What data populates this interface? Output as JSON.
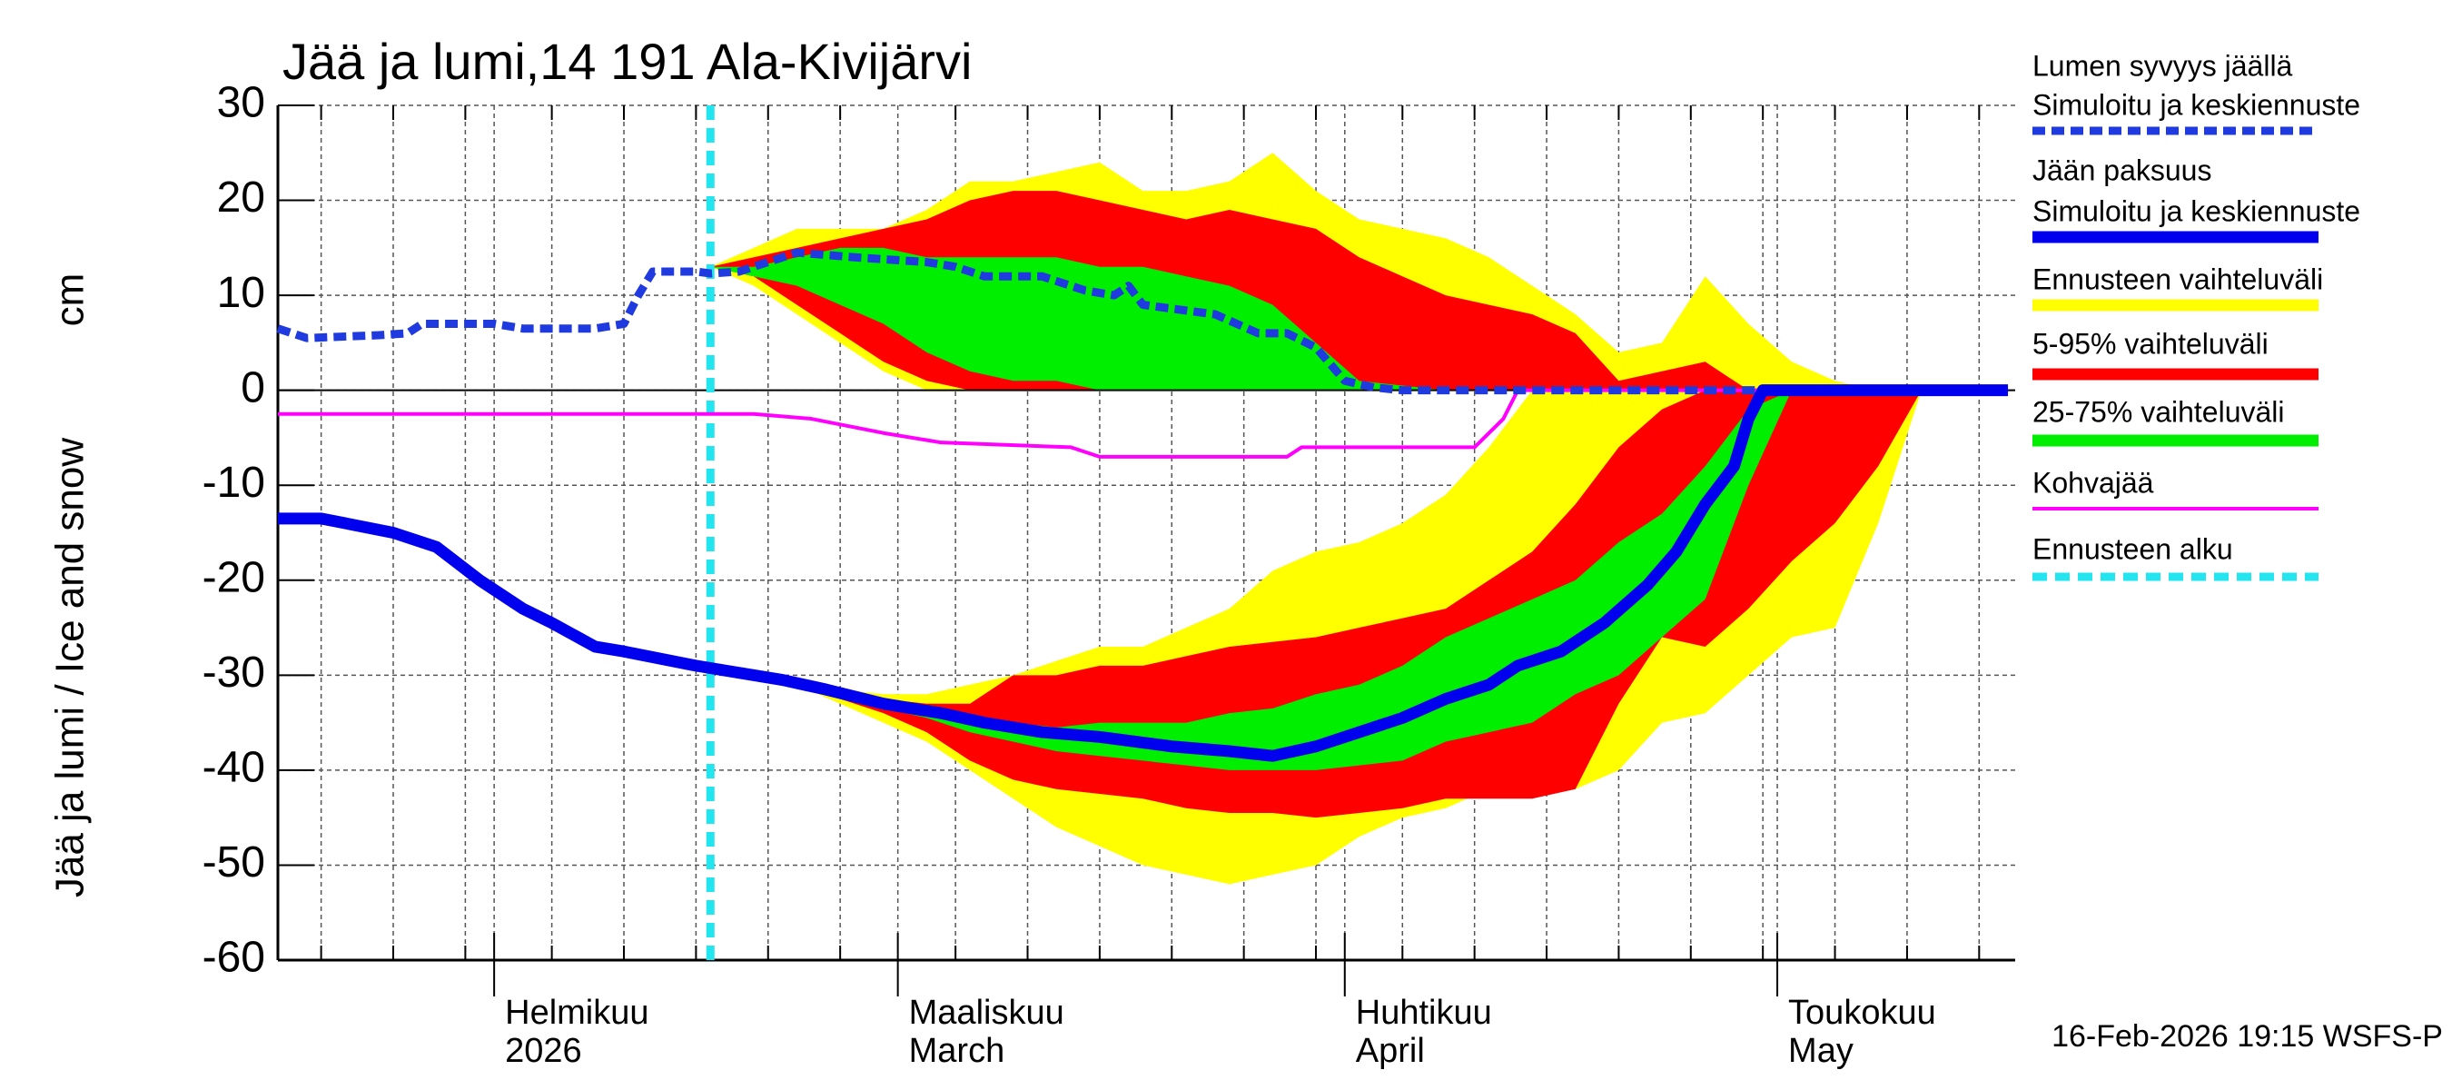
{
  "chart_data": {
    "type": "line",
    "title": "Jää ja lumi,14 191 Ala-Kivijärvi",
    "ylabel": "Jää ja lumi / Ice and snow",
    "yunit": "cm",
    "footer": "16-Feb-2026 19:15 WSFS-P",
    "xlim": [
      17,
      137.5
    ],
    "ylim": [
      -60,
      30
    ],
    "yticks": [
      30,
      20,
      10,
      0,
      -10,
      -20,
      -30,
      -40,
      -50,
      -60
    ],
    "xticks": [
      {
        "value": 32,
        "label": "Helmikuu"
      },
      {
        "value": 60,
        "label": "Maaliskuu"
      },
      {
        "value": 91,
        "label": "Huhtikuu"
      },
      {
        "value": 121,
        "label": "Toukokuu"
      }
    ],
    "xticks_sub": [
      "2026",
      "March",
      "April",
      "May"
    ],
    "xminor": [
      20,
      25,
      30,
      36,
      41,
      46,
      51,
      56,
      64,
      69,
      74,
      79,
      84,
      89,
      95,
      100,
      105,
      110,
      115,
      120,
      125,
      130,
      135
    ],
    "grid": true,
    "series": [
      {
        "name": "Lumen syvyys jäällä",
        "name2": "Simuloitu ja keskiennuste",
        "color": "#1f3be0",
        "dashed": true,
        "width": 9,
        "x": [
          17,
          19,
          24,
          26,
          27,
          32,
          34,
          39,
          41,
          42,
          43,
          46,
          47,
          49,
          51,
          53,
          57,
          62,
          64,
          66,
          70,
          72,
          73,
          75,
          76,
          77,
          82,
          85,
          87,
          89,
          91,
          93,
          95,
          137
        ],
        "values": [
          6.5,
          5.5,
          5.8,
          6,
          7,
          7,
          6.5,
          6.5,
          7,
          10,
          12.5,
          12.5,
          12.3,
          12.5,
          13.5,
          14.5,
          14,
          13.5,
          13,
          12,
          12,
          11,
          10.5,
          10,
          11,
          9,
          8,
          6,
          6,
          4.5,
          1,
          0.3,
          0,
          0
        ]
      },
      {
        "name": "Jään paksuus",
        "name2": "Simuloitu ja keskiennuste",
        "color": "#0000ee",
        "dashed": false,
        "width": 13,
        "x": [
          17,
          20,
          25,
          28,
          31,
          34,
          36,
          39,
          41,
          46,
          48,
          52,
          55,
          59,
          63,
          66,
          70,
          74,
          79,
          83,
          86,
          89,
          91,
          95,
          98,
          101,
          103,
          106,
          109,
          112,
          114,
          116,
          118,
          119,
          120,
          137
        ],
        "values": [
          -13.5,
          -13.5,
          -15,
          -16.5,
          -20,
          -23,
          -24.5,
          -27,
          -27.5,
          -29,
          -29.5,
          -30.5,
          -31.5,
          -33,
          -34,
          -35,
          -36,
          -36.5,
          -37.5,
          -38,
          -38.5,
          -37.5,
          -36.5,
          -34.5,
          -32.5,
          -31,
          -29,
          -27.5,
          -24.5,
          -20.5,
          -17,
          -12,
          -8,
          -3,
          0,
          0
        ]
      },
      {
        "name": "Kohvajää",
        "color": "#ff00ff",
        "dashed": false,
        "width": 4,
        "x": [
          17,
          50,
          54,
          59,
          63,
          72,
          74,
          87,
          88,
          100,
          102,
          103,
          137
        ],
        "values": [
          -2.5,
          -2.5,
          -3,
          -4.5,
          -5.5,
          -6,
          -7,
          -7,
          -6,
          -6,
          -3,
          0,
          0
        ]
      }
    ],
    "band_x": [
      47,
      50,
      53,
      56,
      59,
      62,
      65,
      68,
      71,
      74,
      77,
      80,
      83,
      86,
      89,
      92,
      95,
      98,
      101,
      104,
      107,
      110,
      113,
      116,
      119,
      122,
      125,
      128,
      131,
      134
    ],
    "bands": [
      {
        "name": "Ennusteen vaihteluväli",
        "color": "#ffff00",
        "snow": {
          "high": [
            13,
            15,
            17,
            17,
            17,
            19,
            22,
            22,
            23,
            24,
            21,
            21,
            22,
            25,
            21,
            18,
            17,
            16,
            14,
            11,
            8,
            4,
            5,
            12,
            7,
            3,
            1,
            0,
            0,
            0
          ],
          "low": [
            13,
            11,
            8,
            5,
            2,
            0,
            0,
            0,
            0,
            0,
            0,
            0,
            0,
            0,
            0,
            0,
            0,
            0,
            0,
            0,
            0,
            0,
            0,
            0,
            0,
            0,
            0,
            0,
            0,
            0
          ]
        },
        "ice": {
          "high": [
            -29,
            -30,
            -30.5,
            -31.5,
            -32,
            -32,
            -31,
            -30,
            -28.5,
            -27,
            -27,
            -25,
            -23,
            -19,
            -17,
            -16,
            -14,
            -11,
            -6,
            0,
            0,
            0,
            0,
            0,
            0,
            0,
            0,
            0,
            0,
            0
          ],
          "low": [
            -29,
            -30,
            -31,
            -33,
            -35,
            -37,
            -40,
            -43,
            -46,
            -48,
            -50,
            -51,
            -52,
            -51,
            -50,
            -47,
            -45,
            -44,
            -42,
            -42,
            -42,
            -40,
            -35,
            -34,
            -30,
            -26,
            -25,
            -14,
            0,
            0
          ]
        }
      },
      {
        "name": "5-95% vaihteluväli",
        "color": "#ff0000",
        "snow": {
          "high": [
            13,
            14,
            15,
            16,
            17,
            18,
            20,
            21,
            21,
            20,
            19,
            18,
            19,
            18,
            17,
            14,
            12,
            10,
            9,
            8,
            6,
            1,
            2,
            3,
            0,
            0,
            0,
            0,
            0,
            0
          ],
          "low": [
            13,
            12,
            9,
            6,
            3,
            1,
            0,
            0,
            0,
            0,
            0,
            0,
            0,
            0,
            0,
            0,
            0,
            0,
            0,
            0,
            0,
            0,
            0,
            0,
            0,
            0,
            0,
            0,
            0,
            0
          ]
        },
        "ice": {
          "high": [
            -29,
            -30,
            -30.5,
            -31.5,
            -32.5,
            -33,
            -33,
            -30,
            -30,
            -29,
            -29,
            -28,
            -27,
            -26.5,
            -26,
            -25,
            -24,
            -23,
            -20,
            -17,
            -12,
            -6,
            -2,
            0,
            0,
            0,
            0,
            0,
            0,
            0
          ],
          "low": [
            -29,
            -30,
            -31,
            -32.5,
            -34,
            -36,
            -39,
            -41,
            -42,
            -42.5,
            -43,
            -44,
            -44.5,
            -44.5,
            -45,
            -44.5,
            -44,
            -43,
            -43,
            -43,
            -42,
            -33,
            -26,
            -27,
            -23,
            -18,
            -14,
            -8,
            0,
            0
          ]
        }
      },
      {
        "name": "25-75% vaihteluväli",
        "color": "#00ee00",
        "snow": {
          "high": [
            13,
            13,
            14,
            15,
            15,
            14,
            14,
            14,
            14,
            13,
            13,
            12,
            11,
            9,
            5,
            1,
            0.5,
            0,
            0,
            0,
            0,
            0,
            0,
            0,
            0,
            0,
            0,
            0,
            0,
            0
          ],
          "low": [
            13,
            12,
            11,
            9,
            7,
            4,
            2,
            1,
            1,
            0,
            0,
            0,
            0,
            0,
            0,
            0,
            0,
            0,
            0,
            0,
            0,
            0,
            0,
            0,
            0,
            0,
            0,
            0,
            0,
            0
          ]
        },
        "ice": {
          "high": [
            -29,
            -30,
            -30.5,
            -31.5,
            -32.5,
            -33.5,
            -34.5,
            -35,
            -35.5,
            -35,
            -35,
            -35,
            -34,
            -33.5,
            -32,
            -31,
            -29,
            -26,
            -24,
            -22,
            -20,
            -16,
            -13,
            -8,
            -2,
            0,
            0,
            0,
            0,
            0
          ],
          "low": [
            -29,
            -30,
            -31,
            -32,
            -33.5,
            -34.5,
            -36,
            -37,
            -38,
            -38.5,
            -39,
            -39.5,
            -40,
            -40,
            -40,
            -39.5,
            -39,
            -37,
            -36,
            -35,
            -32,
            -30,
            -26,
            -22,
            -10,
            0,
            0,
            0,
            0,
            0
          ]
        }
      }
    ],
    "forecast_start": {
      "name": "Ennusteen alku",
      "value": 47,
      "color": "#22e5f0"
    }
  }
}
